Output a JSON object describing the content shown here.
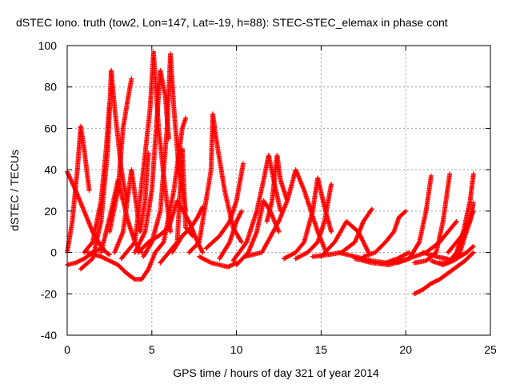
{
  "chart_data": {
    "type": "scatter",
    "title": "dSTEC Iono. truth (tow2, Lon=147, Lat=-19, h=88): STEC-STEC_elemax in phase cont",
    "xlabel": "GPS time / hours of day 321 of year 2014",
    "ylabel": "dSTEC  / TECUs",
    "xlim": [
      0,
      25
    ],
    "ylim": [
      -40,
      100
    ],
    "xticks": [
      "0",
      "5",
      "10",
      "15",
      "20",
      "25"
    ],
    "yticks": [
      "-40",
      "-20",
      "0",
      "20",
      "40",
      "60",
      "80",
      "100"
    ],
    "grid": true,
    "marker": "+",
    "color": "#ff0000",
    "series": [
      {
        "x": [
          0.0,
          0.5,
          1.0,
          1.5,
          2.0,
          2.3,
          2.5
        ],
        "y": [
          39,
          30,
          20,
          10,
          3,
          0,
          -1
        ]
      },
      {
        "x": [
          0.0,
          0.3,
          0.6,
          0.8,
          1.0,
          1.3
        ],
        "y": [
          0,
          15,
          40,
          61,
          50,
          30
        ]
      },
      {
        "x": [
          0.0,
          0.5,
          1.0,
          1.5,
          2.0
        ],
        "y": [
          -6,
          -5,
          -3,
          0,
          2
        ]
      },
      {
        "x": [
          0.8,
          1.5,
          2.0,
          2.4,
          2.6,
          2.8,
          3.2,
          3.5
        ],
        "y": [
          -8,
          -3,
          15,
          50,
          88,
          70,
          40,
          25
        ]
      },
      {
        "x": [
          1.0,
          1.5,
          2.0,
          2.3,
          2.5
        ],
        "y": [
          0,
          5,
          25,
          50,
          72
        ]
      },
      {
        "x": [
          2.5,
          3.0,
          3.3,
          3.6,
          3.8
        ],
        "y": [
          10,
          30,
          60,
          75,
          84
        ]
      },
      {
        "x": [
          2.8,
          3.3,
          3.8,
          4.3,
          4.6,
          4.8
        ],
        "y": [
          0,
          10,
          40,
          10,
          25,
          48
        ]
      },
      {
        "x": [
          1.2,
          2.0,
          3.0,
          3.5,
          4.0,
          4.4,
          4.8,
          5.2
        ],
        "y": [
          0,
          -2,
          -6,
          -10,
          -13,
          -13,
          -8,
          0
        ]
      },
      {
        "x": [
          2.0,
          2.6,
          3.0,
          3.3,
          3.6,
          4.0,
          4.4
        ],
        "y": [
          0,
          20,
          35,
          25,
          15,
          5,
          0
        ]
      },
      {
        "x": [
          3.2,
          4.0,
          4.5,
          4.9,
          5.1,
          5.4,
          5.8,
          6.1
        ],
        "y": [
          -3,
          5,
          40,
          70,
          97,
          60,
          30,
          10
        ]
      },
      {
        "x": [
          4.0,
          4.6,
          5.0,
          5.5,
          5.8,
          6.0
        ],
        "y": [
          0,
          10,
          30,
          88,
          75,
          55
        ]
      },
      {
        "x": [
          4.5,
          5.0,
          5.5,
          5.9,
          6.1,
          6.3,
          6.6,
          7.0
        ],
        "y": [
          -2,
          5,
          20,
          60,
          96,
          70,
          40,
          20
        ]
      },
      {
        "x": [
          5.2,
          5.7,
          6.3,
          6.8,
          7.0
        ],
        "y": [
          0,
          5,
          30,
          60,
          65
        ]
      },
      {
        "x": [
          4.2,
          4.8,
          5.4,
          6.0,
          6.5,
          7.2,
          7.7,
          8.0
        ],
        "y": [
          0,
          5,
          8,
          12,
          25,
          15,
          5,
          0
        ]
      },
      {
        "x": [
          5.5,
          6.0,
          6.5,
          6.8,
          7.0,
          7.4
        ],
        "y": [
          -5,
          0,
          5,
          50,
          12,
          8
        ]
      },
      {
        "x": [
          6.2,
          6.8,
          7.3,
          7.7,
          8.0
        ],
        "y": [
          0,
          8,
          12,
          17,
          22
        ]
      },
      {
        "x": [
          7.2,
          7.8,
          8.5,
          8.6,
          8.8,
          9.3,
          9.8,
          10.3
        ],
        "y": [
          0,
          5,
          40,
          67,
          55,
          30,
          12,
          5
        ]
      },
      {
        "x": [
          7.8,
          8.5,
          9.0,
          9.5,
          10.0
        ],
        "y": [
          -2,
          -5,
          -6,
          -7,
          -5
        ]
      },
      {
        "x": [
          8.2,
          9.0,
          9.6,
          10.0,
          10.4
        ],
        "y": [
          2,
          8,
          15,
          25,
          43
        ]
      },
      {
        "x": [
          9.0,
          9.6,
          10.0,
          10.3
        ],
        "y": [
          -3,
          5,
          15,
          20
        ]
      },
      {
        "x": [
          9.8,
          10.6,
          11.2,
          11.6,
          11.9,
          12.2,
          12.6
        ],
        "y": [
          -4,
          5,
          20,
          35,
          47,
          35,
          20
        ]
      },
      {
        "x": [
          10.0,
          10.7,
          11.2,
          11.6,
          12.0,
          12.5
        ],
        "y": [
          -6,
          0,
          10,
          25,
          20,
          10
        ]
      },
      {
        "x": [
          11.8,
          12.1,
          12.4,
          12.6,
          13.0
        ],
        "y": [
          15,
          25,
          47,
          35,
          25
        ]
      },
      {
        "x": [
          10.5,
          11.5,
          12.5,
          13.0,
          13.5,
          14.0,
          14.8,
          15.3
        ],
        "y": [
          -2,
          0,
          15,
          25,
          40,
          30,
          10,
          0
        ]
      },
      {
        "x": [
          12.8,
          13.5,
          14.0,
          14.5,
          14.8,
          15.2,
          15.6
        ],
        "y": [
          -3,
          0,
          5,
          20,
          36,
          22,
          10
        ]
      },
      {
        "x": [
          13.5,
          14.2,
          14.8,
          15.2,
          15.6
        ],
        "y": [
          -3,
          0,
          5,
          15,
          33
        ]
      },
      {
        "x": [
          14.5,
          15.5,
          16.2,
          17.0,
          17.5,
          18.0
        ],
        "y": [
          -2,
          -1,
          0,
          5,
          15,
          21
        ]
      },
      {
        "x": [
          15.0,
          15.8,
          16.5,
          17.2,
          17.8
        ],
        "y": [
          -2,
          5,
          15,
          10,
          0
        ]
      },
      {
        "x": [
          16.0,
          17.0,
          18.0,
          18.8,
          19.5,
          20.2
        ],
        "y": [
          0,
          -2,
          -4,
          -5,
          -3,
          0
        ]
      },
      {
        "x": [
          17.5,
          18.2,
          18.8,
          19.3,
          19.6,
          20.0
        ],
        "y": [
          -2,
          0,
          5,
          10,
          17,
          20
        ]
      },
      {
        "x": [
          17.0,
          18.0,
          19.0,
          19.8,
          20.5,
          21.2,
          22.0,
          22.5,
          23.0
        ],
        "y": [
          -3,
          -5,
          -6,
          -4,
          -2,
          0,
          5,
          10,
          15
        ]
      },
      {
        "x": [
          19.5,
          20.2,
          20.8,
          21.2,
          21.5
        ],
        "y": [
          -5,
          -3,
          5,
          20,
          37
        ]
      },
      {
        "x": [
          20.5,
          21.2,
          21.8,
          22.2,
          22.6
        ],
        "y": [
          -5,
          -4,
          0,
          15,
          38
        ]
      },
      {
        "x": [
          20.5,
          21.0,
          21.5,
          22.0,
          22.5,
          23.0,
          23.5,
          24.0
        ],
        "y": [
          -20,
          -18,
          -15,
          -13,
          -10,
          -7,
          -4,
          0
        ]
      },
      {
        "x": [
          21.0,
          21.8,
          22.4,
          22.8,
          23.2,
          23.6,
          24.0
        ],
        "y": [
          0,
          -2,
          -3,
          -4,
          -2,
          0,
          3
        ]
      },
      {
        "x": [
          22.0,
          22.5,
          23.0,
          23.4,
          23.8,
          24.0
        ],
        "y": [
          -5,
          -5,
          0,
          10,
          25,
          38
        ]
      },
      {
        "x": [
          21.5,
          22.2,
          22.8,
          23.2,
          23.5,
          23.8,
          24.0
        ],
        "y": [
          -4,
          -6,
          -4,
          0,
          8,
          15,
          24
        ]
      },
      {
        "x": [
          22.5,
          23.0,
          23.5,
          24.0
        ],
        "y": [
          0,
          5,
          10,
          20
        ]
      }
    ]
  }
}
